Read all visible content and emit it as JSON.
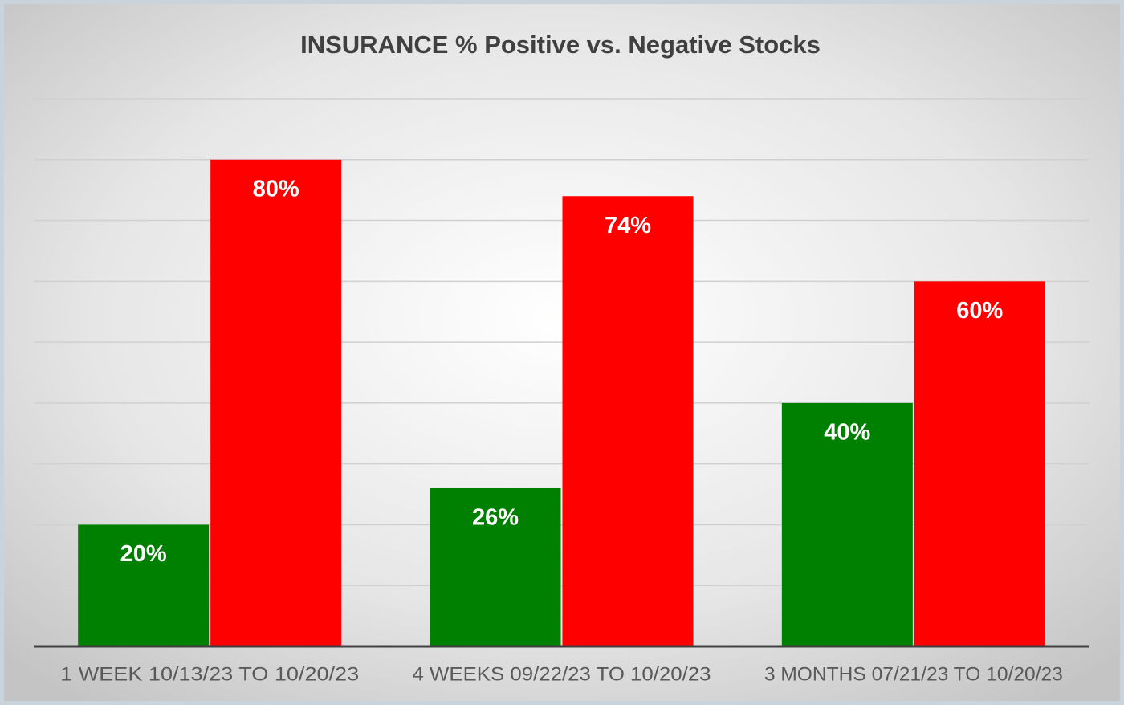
{
  "chart_data": {
    "type": "bar",
    "title": "INSURANCE % Positive vs. Negative Stocks",
    "categories": [
      "1 WEEK 10/13/23 TO 10/20/23",
      "4 WEEKS 09/22/23 TO 10/20/23",
      "3 MONTHS 07/21/23 TO 10/20/23"
    ],
    "series": [
      {
        "color": "#008000",
        "values": [
          20,
          26,
          40
        ],
        "value_labels": [
          "20%",
          "26%",
          "40%"
        ]
      },
      {
        "color": "#ff0000",
        "values": [
          80,
          74,
          60
        ],
        "value_labels": [
          "80%",
          "74%",
          "60%"
        ]
      }
    ],
    "ylim": [
      0,
      90
    ],
    "yticks": [
      0,
      10,
      20,
      30,
      40,
      50,
      60,
      70,
      80,
      90
    ],
    "grid": true,
    "show_tick_labels": false
  }
}
